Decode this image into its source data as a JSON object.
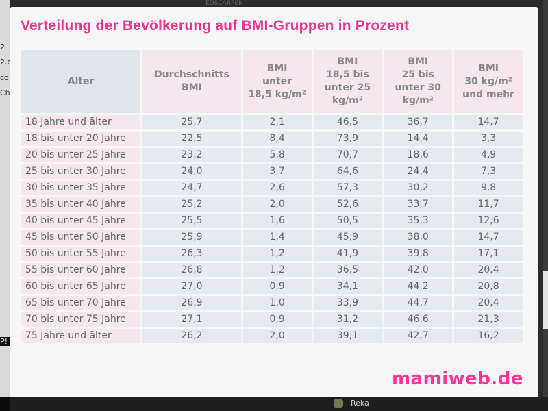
{
  "background": {
    "top_fragment": "EDSCARPEN",
    "left_fragments": [
      "2",
      "2.c",
      "co",
      "Ch",
      "P!"
    ],
    "bottom_fragment": "Reka"
  },
  "modal": {
    "title": "Verteilung der Bevölkerung auf BMI-Gruppen in Prozent",
    "close_label": "×",
    "brand": "mamiweb.de"
  },
  "colors": {
    "title": "#e8368f",
    "brand": "#ff3399",
    "age_cell": "#f6e6ee",
    "value_cell": "#e4ebf0"
  },
  "table": {
    "headers": [
      "Alter",
      "Durchschnitts\nBMI",
      "BMI\nunter\n18,5 kg/m²",
      "BMI\n18,5 bis\nunter 25\nkg/m²",
      "BMI\n25 bis\nunter 30\nkg/m²",
      "BMI\n30 kg/m²\nund mehr"
    ],
    "rows": [
      [
        "18 Jahre und älter",
        "25,7",
        "2,1",
        "46,5",
        "36,7",
        "14,7"
      ],
      [
        "18 bis unter 20 Jahre",
        "22,5",
        "8,4",
        "73,9",
        "14,4",
        "3,3"
      ],
      [
        "20 bis unter 25 Jahre",
        "23,2",
        "5,8",
        "70,7",
        "18,6",
        "4,9"
      ],
      [
        "25 bis unter 30 Jahre",
        "24,0",
        "3,7",
        "64,6",
        "24,4",
        "7,3"
      ],
      [
        "30 bis unter 35 Jahre",
        "24,7",
        "2,6",
        "57,3",
        "30,2",
        "9,8"
      ],
      [
        "35 bis unter 40 Jahre",
        "25,2",
        "2,0",
        "52,6",
        "33,7",
        "11,7"
      ],
      [
        "40 bis unter 45 Jahre",
        "25,5",
        "1,6",
        "50,5",
        "35,3",
        "12,6"
      ],
      [
        "45 bis unter 50 Jahre",
        "25,9",
        "1,4",
        "45,9",
        "38,0",
        "14,7"
      ],
      [
        "50 bis unter 55 Jahre",
        "26,3",
        "1,2",
        "41,9",
        "39,8",
        "17,1"
      ],
      [
        "55 bis unter 60 Jahre",
        "26,8",
        "1,2",
        "36,5",
        "42,0",
        "20,4"
      ],
      [
        "60 bis unter 65 Jahre",
        "27,0",
        "0,9",
        "34,1",
        "44,2",
        "20,8"
      ],
      [
        "65 bis unter 70 Jahre",
        "26,9",
        "1,0",
        "33,9",
        "44,7",
        "20,4"
      ],
      [
        "70 bis unter 75 Jahre",
        "27,1",
        "0,9",
        "31,2",
        "46,6",
        "21,3"
      ],
      [
        "75 Jahre und älter",
        "26,2",
        "2,0",
        "39,1",
        "42,7",
        "16,2"
      ]
    ]
  }
}
